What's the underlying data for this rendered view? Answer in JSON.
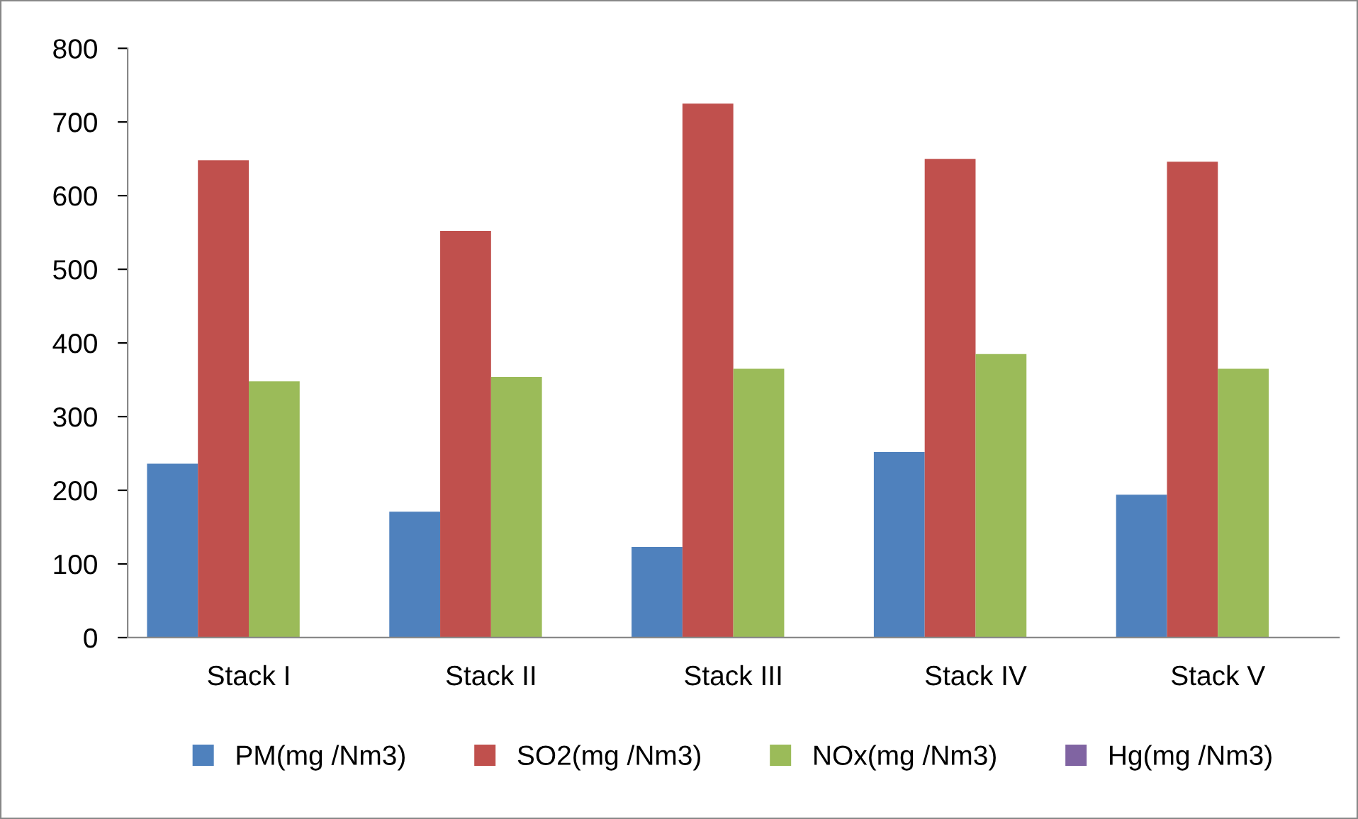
{
  "chart_data": {
    "type": "bar",
    "categories": [
      "Stack I",
      "Stack II",
      "Stack III",
      "Stack IV",
      "Stack V"
    ],
    "series": [
      {
        "name": "PM(mg /Nm3)",
        "color": "#4f81bd",
        "values": [
          236,
          171,
          123,
          252,
          194
        ]
      },
      {
        "name": "SO2(mg /Nm3)",
        "color": "#c0504d",
        "values": [
          648,
          552,
          725,
          650,
          646
        ]
      },
      {
        "name": "NOx(mg /Nm3)",
        "color": "#9bbb59",
        "values": [
          348,
          354,
          365,
          385,
          365
        ]
      },
      {
        "name": "Hg(mg /Nm3)",
        "color": "#8064a2",
        "values": [
          0,
          0,
          0,
          0,
          0
        ]
      }
    ],
    "ylim": [
      0,
      800
    ],
    "yticks": [
      0,
      100,
      200,
      300,
      400,
      500,
      600,
      700,
      800
    ],
    "grid": false,
    "legend": "bottom"
  }
}
